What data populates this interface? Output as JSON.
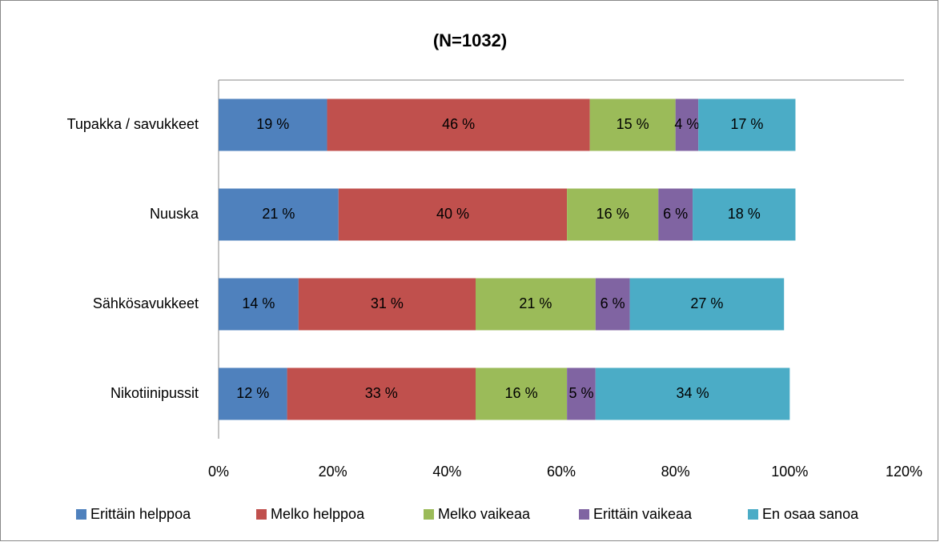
{
  "chart_data": {
    "type": "stacked-bar-horizontal",
    "title": "(N=1032)",
    "categories": [
      "Tupakka / savukkeet",
      "Nuuska",
      "Sähkösavukkeet",
      "Nikotiinipussit"
    ],
    "series": [
      {
        "name": "Erittäin helppoa",
        "color": "#4f81bd",
        "values": [
          19,
          21,
          14,
          12
        ],
        "value_labels": [
          "19 %",
          "21 %",
          "14 %",
          "12 %"
        ]
      },
      {
        "name": "Melko helppoa",
        "color": "#c0504d",
        "values": [
          46,
          40,
          31,
          33
        ],
        "value_labels": [
          "46 %",
          "40 %",
          "31 %",
          "33 %"
        ]
      },
      {
        "name": "Melko vaikeaa",
        "color": "#9bbb59",
        "values": [
          15,
          16,
          21,
          16
        ],
        "value_labels": [
          "15 %",
          "16 %",
          "21 %",
          "16 %"
        ]
      },
      {
        "name": "Erittäin vaikeaa",
        "color": "#8064a2",
        "values": [
          4,
          6,
          6,
          5
        ],
        "value_labels": [
          "4 %",
          "6 %",
          "6 %",
          "5 %"
        ]
      },
      {
        "name": "En osaa sanoa",
        "color": "#4bacc6",
        "values": [
          17,
          18,
          27,
          34
        ],
        "value_labels": [
          "17 %",
          "18 %",
          "27 %",
          "34 %"
        ]
      }
    ],
    "xlim": [
      0,
      120
    ],
    "xticks": [
      {
        "value": 0,
        "label": "0%"
      },
      {
        "value": 20,
        "label": "20%"
      },
      {
        "value": 40,
        "label": "40%"
      },
      {
        "value": 60,
        "label": "60%"
      },
      {
        "value": 80,
        "label": "80%"
      },
      {
        "value": 100,
        "label": "100%"
      },
      {
        "value": 120,
        "label": "120%"
      }
    ],
    "legend": "bottom"
  }
}
